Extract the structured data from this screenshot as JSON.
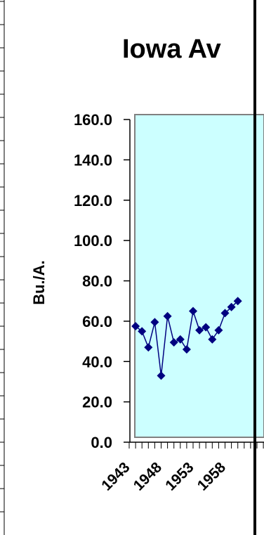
{
  "chart_data": {
    "type": "line",
    "title": "Iowa Av",
    "ylabel": "Bu./A.",
    "xlabel": "",
    "ylim": [
      0,
      160
    ],
    "yticks": [
      "0.0",
      "20.0",
      "40.0",
      "60.0",
      "80.0",
      "100.0",
      "120.0",
      "140.0",
      "160.0"
    ],
    "xtick_labels": [
      "1943",
      "1948",
      "1953",
      "1958"
    ],
    "x": [
      1944,
      1945,
      1946,
      1947,
      1948,
      1949,
      1950,
      1951,
      1952,
      1953,
      1954,
      1955,
      1956,
      1957,
      1958,
      1959,
      1960
    ],
    "values": [
      57.5,
      55.0,
      47.0,
      59.5,
      33.0,
      62.5,
      49.5,
      51.0,
      46.0,
      65.0,
      55.5,
      57.0,
      51.0,
      55.5,
      64.0,
      67.0,
      70.0
    ],
    "grid": false,
    "legend": "none",
    "colors": {
      "plot_area": "#ccffff",
      "series": "#000080",
      "frame": "#808080",
      "axis": "#000000"
    }
  }
}
